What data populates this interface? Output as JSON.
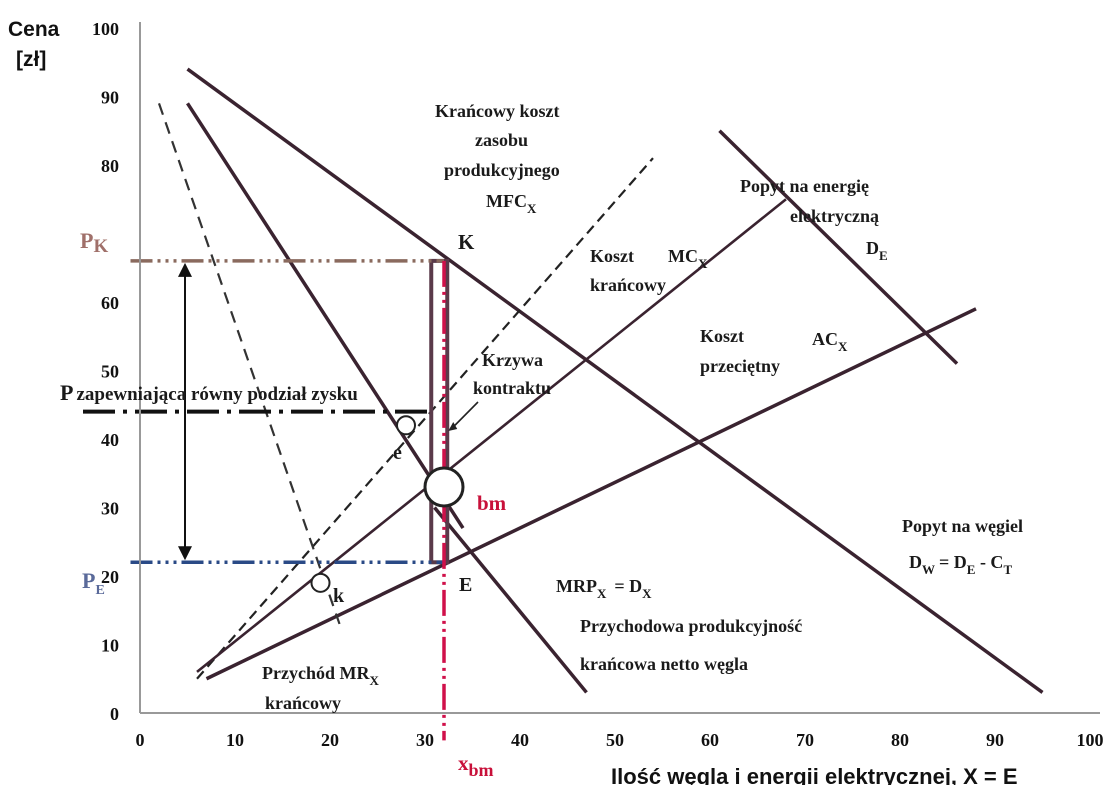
{
  "chart_data": {
    "type": "line",
    "ylabel_line1": "Cena",
    "ylabel_line2": "[zł]",
    "xlabel": "Ilość  węgla i energii elektrycznej, X = E",
    "xlim": [
      0,
      100
    ],
    "ylim": [
      0,
      100
    ],
    "grid": false,
    "x_ticks": [
      0,
      10,
      20,
      30,
      40,
      50,
      60,
      70,
      80,
      90,
      100
    ],
    "y_ticks": [
      0,
      10,
      20,
      30,
      40,
      50,
      60,
      70,
      80,
      90,
      100
    ],
    "y_ticks_printed": [
      "0",
      "10",
      "20",
      "30",
      "40",
      "50",
      "60",
      "",
      "80",
      "90",
      "100"
    ],
    "series": [
      {
        "key": "de",
        "points": [
          [
            61,
            85
          ],
          [
            86,
            51
          ]
        ]
      },
      {
        "key": "dw",
        "points": [
          [
            5,
            94
          ],
          [
            95,
            3
          ]
        ]
      },
      {
        "key": "mr",
        "points": [
          [
            5,
            89
          ],
          [
            34,
            27
          ]
        ]
      },
      {
        "key": "mrp",
        "points": [
          [
            31,
            30
          ],
          [
            47,
            3
          ]
        ]
      },
      {
        "key": "mfc",
        "points": [
          [
            6,
            5
          ],
          [
            54,
            81
          ]
        ]
      },
      {
        "key": "mc",
        "points": [
          [
            6,
            6
          ],
          [
            68,
            75
          ]
        ]
      },
      {
        "key": "ac",
        "points": [
          [
            7,
            5
          ],
          [
            88,
            59
          ]
        ]
      },
      {
        "key": "dash_mr",
        "points": [
          [
            2,
            89
          ],
          [
            21,
            13
          ]
        ]
      },
      {
        "key": "contract",
        "points": [
          [
            31.5,
            22
          ],
          [
            31.5,
            66
          ]
        ]
      },
      {
        "key": "p_k",
        "points": [
          [
            -1,
            66
          ],
          [
            32,
            66
          ]
        ]
      },
      {
        "key": "p_e",
        "points": [
          [
            -1,
            22
          ],
          [
            32,
            22
          ]
        ]
      },
      {
        "key": "p_mid",
        "points": [
          [
            -6,
            44
          ],
          [
            30.5,
            44
          ]
        ]
      },
      {
        "key": "x_bm",
        "points": [
          [
            32,
            66
          ],
          [
            32,
            -4
          ]
        ]
      }
    ],
    "markers": [
      {
        "key": "bm",
        "x": 32,
        "y": 33,
        "size": "large"
      },
      {
        "key": "e",
        "x": 28,
        "y": 42,
        "size": "small"
      },
      {
        "key": "k",
        "x": 19,
        "y": 19,
        "size": "small"
      }
    ],
    "annotations": {
      "mfc": [
        "Krańcowy koszt",
        "zasobu",
        "produkcyjnego",
        "MFC",
        "X"
      ],
      "de": [
        "Popyt na energię",
        "elektryczną",
        "D",
        "E"
      ],
      "mc": [
        "Koszt",
        "MC",
        "X",
        "krańcowy"
      ],
      "ac": [
        "Koszt",
        "AC",
        "X",
        "przeciętny"
      ],
      "contract": [
        "Krzywa",
        "kontraktu"
      ],
      "p_mid": [
        "P",
        "zapewniająca równy podział zysku"
      ],
      "p_k": [
        "P",
        "K"
      ],
      "p_e": [
        "P",
        "E"
      ],
      "k_point": "K",
      "e_point": "E",
      "bm": "bm",
      "e_marker": "e",
      "k_marker": "k",
      "dw": [
        "Popyt na węgiel",
        "D",
        "W",
        "= D",
        "E",
        " - C",
        "T"
      ],
      "mrp": [
        "MRP",
        "X",
        "= D",
        "X",
        "Przychodowa produkcyjność",
        "krańcowa netto węgla"
      ],
      "mr": [
        "Przychód MR",
        "X",
        "krańcowy"
      ],
      "x_bm": [
        "x",
        "bm"
      ]
    },
    "colors": {
      "line": "#3a2330",
      "p_k": "#8a6a5e",
      "p_e": "#2a4a86",
      "x_bm": "#d0104a",
      "contract": "#5a3a4a",
      "label_pk": "#a0706a",
      "label_pe": "#5a6a9a",
      "bm": "#c8103a"
    }
  }
}
